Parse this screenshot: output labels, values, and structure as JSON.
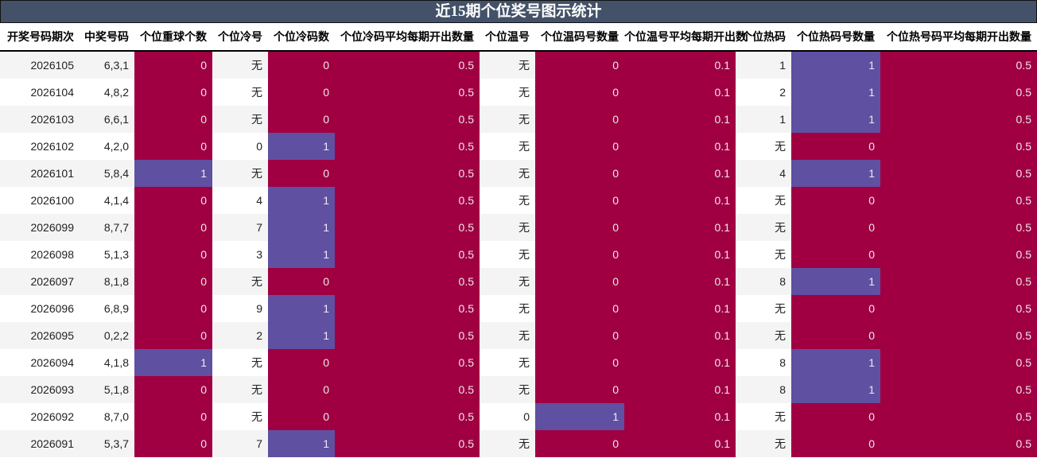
{
  "title": "近15期个位奖号图示统计",
  "colors": {
    "title_bar": "#435268",
    "zero_fill": "#a00042",
    "one_fill": "#5f50a2"
  },
  "headers": [
    "开奖号码期次",
    "中奖号码",
    "个位重球个数",
    "个位冷号",
    "个位冷码数",
    "个位冷码平均每期开出数量",
    "个位温号",
    "个位温码号数量",
    "个位温号平均每期开出数",
    "个位热码",
    "个位热码号数量",
    "个位热号码平均每期开出数量"
  ],
  "rows": [
    [
      "2026105",
      "6,3,1",
      "0",
      "无",
      "0",
      "0.5",
      "无",
      "0",
      "0.1",
      "1",
      "1",
      "0.5"
    ],
    [
      "2026104",
      "4,8,2",
      "0",
      "无",
      "0",
      "0.5",
      "无",
      "0",
      "0.1",
      "2",
      "1",
      "0.5"
    ],
    [
      "2026103",
      "6,6,1",
      "0",
      "无",
      "0",
      "0.5",
      "无",
      "0",
      "0.1",
      "1",
      "1",
      "0.5"
    ],
    [
      "2026102",
      "4,2,0",
      "0",
      "0",
      "1",
      "0.5",
      "无",
      "0",
      "0.1",
      "无",
      "0",
      "0.5"
    ],
    [
      "2026101",
      "5,8,4",
      "1",
      "无",
      "0",
      "0.5",
      "无",
      "0",
      "0.1",
      "4",
      "1",
      "0.5"
    ],
    [
      "2026100",
      "4,1,4",
      "0",
      "4",
      "1",
      "0.5",
      "无",
      "0",
      "0.1",
      "无",
      "0",
      "0.5"
    ],
    [
      "2026099",
      "8,7,7",
      "0",
      "7",
      "1",
      "0.5",
      "无",
      "0",
      "0.1",
      "无",
      "0",
      "0.5"
    ],
    [
      "2026098",
      "5,1,3",
      "0",
      "3",
      "1",
      "0.5",
      "无",
      "0",
      "0.1",
      "无",
      "0",
      "0.5"
    ],
    [
      "2026097",
      "8,1,8",
      "0",
      "无",
      "0",
      "0.5",
      "无",
      "0",
      "0.1",
      "8",
      "1",
      "0.5"
    ],
    [
      "2026096",
      "6,8,9",
      "0",
      "9",
      "1",
      "0.5",
      "无",
      "0",
      "0.1",
      "无",
      "0",
      "0.5"
    ],
    [
      "2026095",
      "0,2,2",
      "0",
      "2",
      "1",
      "0.5",
      "无",
      "0",
      "0.1",
      "无",
      "0",
      "0.5"
    ],
    [
      "2026094",
      "4,1,8",
      "1",
      "无",
      "0",
      "0.5",
      "无",
      "0",
      "0.1",
      "8",
      "1",
      "0.5"
    ],
    [
      "2026093",
      "5,1,8",
      "0",
      "无",
      "0",
      "0.5",
      "无",
      "0",
      "0.1",
      "8",
      "1",
      "0.5"
    ],
    [
      "2026092",
      "8,7,0",
      "0",
      "无",
      "0",
      "0.5",
      "0",
      "1",
      "0.1",
      "无",
      "0",
      "0.5"
    ],
    [
      "2026091",
      "5,3,7",
      "0",
      "7",
      "1",
      "0.5",
      "无",
      "0",
      "0.1",
      "无",
      "0",
      "0.5"
    ]
  ]
}
